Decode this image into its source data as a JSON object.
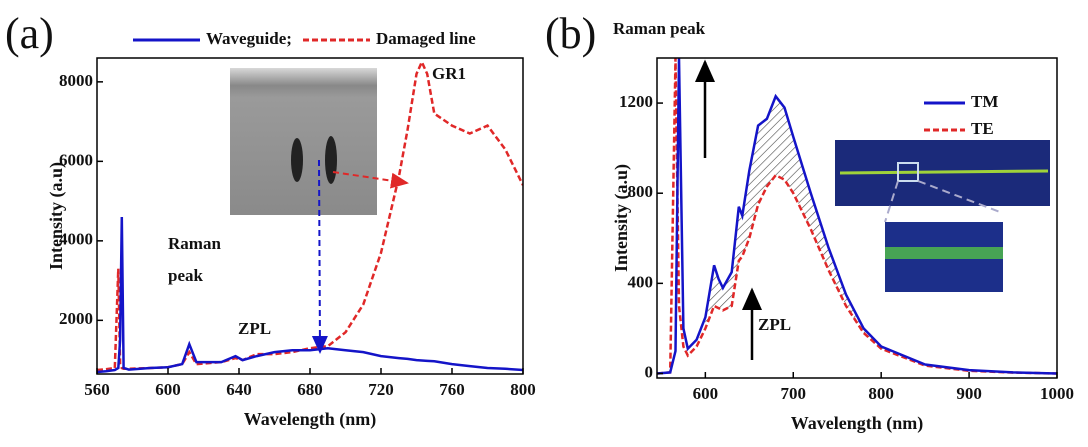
{
  "chart_data": [
    {
      "type": "line",
      "panel_label": "(a)",
      "x_label": "Wavelength (nm)",
      "y_label": "Intensity (a.u)",
      "x": [
        560,
        565,
        570,
        572,
        573,
        574,
        575,
        578,
        590,
        600,
        608,
        612,
        616,
        630,
        638,
        642,
        650,
        660,
        670,
        680,
        690,
        700,
        710,
        720,
        730,
        735,
        740,
        743,
        746,
        750,
        760,
        770,
        780,
        790,
        800
      ],
      "series": [
        {
          "name": "Waveguide;",
          "color": "#1414c8",
          "linestyle": "solid",
          "values": [
            700,
            720,
            750,
            800,
            1500,
            4600,
            800,
            760,
            800,
            820,
            900,
            1400,
            950,
            950,
            1100,
            1000,
            1100,
            1200,
            1250,
            1250,
            1300,
            1250,
            1200,
            1100,
            1050,
            1030,
            1000,
            990,
            980,
            970,
            900,
            850,
            800,
            780,
            750
          ]
        },
        {
          "name": "Damaged line",
          "color": "#e02828",
          "linestyle": "dashed",
          "values": [
            750,
            770,
            800,
            3300,
            900,
            800,
            780,
            780,
            800,
            820,
            900,
            1200,
            900,
            950,
            1050,
            1000,
            1150,
            1150,
            1200,
            1300,
            1350,
            1700,
            2400,
            3700,
            5600,
            6800,
            8200,
            8500,
            8200,
            7200,
            6900,
            6700,
            6900,
            6300,
            5400
          ]
        }
      ],
      "xlim": [
        560,
        800
      ],
      "xticks": [
        560,
        600,
        640,
        680,
        720,
        760,
        800
      ],
      "ylim": [
        650,
        8600
      ],
      "yticks": [
        2000,
        4000,
        6000,
        8000
      ],
      "legend": "top",
      "annotations": [
        "Raman",
        "peak",
        "ZPL",
        "GR1"
      ]
    },
    {
      "type": "line",
      "panel_label": "(b)",
      "x_label": "Wavelength (nm)",
      "y_label": "Intensity (a.u)",
      "x": [
        545,
        560,
        566,
        570,
        575,
        580,
        590,
        600,
        610,
        615,
        620,
        630,
        638,
        642,
        650,
        660,
        670,
        680,
        690,
        700,
        720,
        740,
        760,
        780,
        800,
        850,
        900,
        950,
        1000
      ],
      "series": [
        {
          "name": "TM",
          "color": "#1414c8",
          "linestyle": "solid",
          "values": [
            0,
            5,
            100,
            1400,
            200,
            110,
            150,
            250,
            480,
            420,
            380,
            450,
            740,
            700,
            900,
            1100,
            1130,
            1230,
            1180,
            1050,
            800,
            560,
            350,
            200,
            120,
            40,
            15,
            5,
            0
          ]
        },
        {
          "name": "TE",
          "color": "#e02828",
          "linestyle": "dashed",
          "values": [
            0,
            5,
            1400,
            300,
            120,
            80,
            120,
            200,
            300,
            290,
            280,
            300,
            500,
            520,
            600,
            750,
            830,
            880,
            860,
            800,
            640,
            460,
            300,
            180,
            110,
            35,
            12,
            4,
            0
          ]
        }
      ],
      "xlim": [
        545,
        1000
      ],
      "xticks": [
        600,
        700,
        800,
        900,
        1000
      ],
      "ylim": [
        -20,
        1400
      ],
      "yticks": [
        0,
        400,
        800,
        1200
      ],
      "legend": "upper right",
      "annotations": [
        "Raman peak",
        "ZPL"
      ]
    }
  ]
}
